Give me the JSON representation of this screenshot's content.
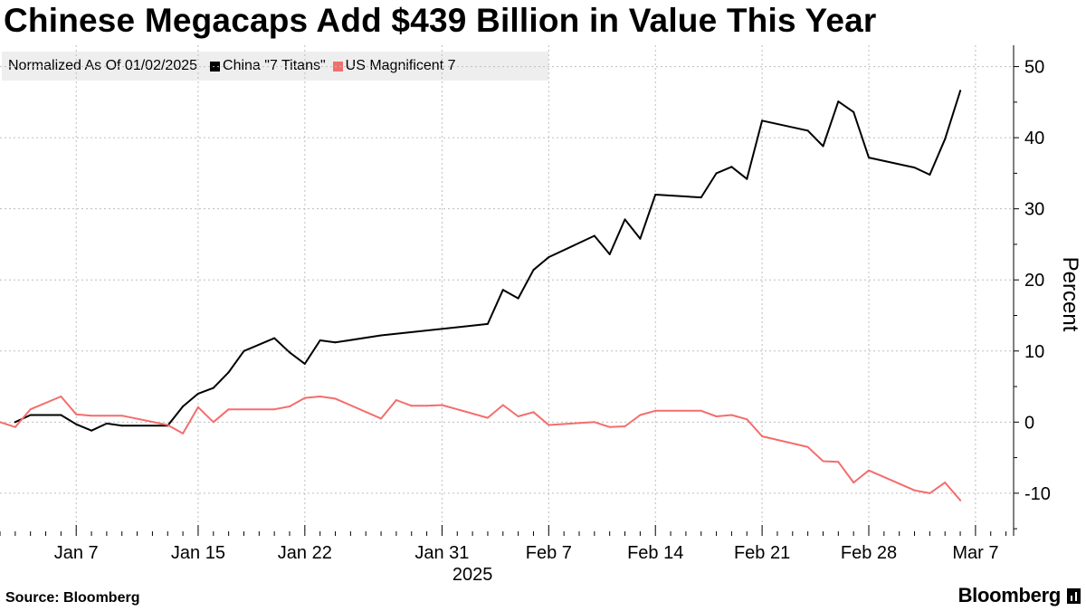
{
  "header": {
    "title": "Chinese Megacaps Add $439 Billion in Value This Year"
  },
  "legend": {
    "note": "Normalized As Of 01/02/2025",
    "items": [
      {
        "label": "China \"7 Titans\"",
        "color": "#000000"
      },
      {
        "label": "US Magnificent 7",
        "color": "#f46d6d"
      }
    ]
  },
  "footer": {
    "source": "Source: Bloomberg",
    "brand": "Bloomberg"
  },
  "chart_data": {
    "type": "line",
    "title": "Chinese Megacaps Add $439 Billion in Value This Year",
    "ylabel": "Percent",
    "xlabel": "2025",
    "ylim": [
      -16,
      53
    ],
    "yticks": [
      50,
      40,
      30,
      20,
      10,
      0,
      -10
    ],
    "xticks": [
      {
        "date": "2025-01-07",
        "label": "Jan 7"
      },
      {
        "date": "2025-01-15",
        "label": "Jan 15"
      },
      {
        "date": "2025-01-22",
        "label": "Jan 22"
      },
      {
        "date": "2025-01-31",
        "label": "Jan 31"
      },
      {
        "date": "2025-02-07",
        "label": "Feb 7"
      },
      {
        "date": "2025-02-14",
        "label": "Feb 14"
      },
      {
        "date": "2025-02-21",
        "label": "Feb 21"
      },
      {
        "date": "2025-02-28",
        "label": "Feb 28"
      },
      {
        "date": "2025-03-07",
        "label": "Mar 7"
      }
    ],
    "year_label": "2025",
    "grid": true,
    "legend_position": "top-left",
    "series": [
      {
        "name": "China \"7 Titans\"",
        "color": "#000000",
        "points": [
          [
            "2025-01-03",
            0.0
          ],
          [
            "2025-01-04",
            1.0
          ],
          [
            "2025-01-06",
            1.0
          ],
          [
            "2025-01-07",
            -0.3
          ],
          [
            "2025-01-08",
            -1.2
          ],
          [
            "2025-01-09",
            -0.2
          ],
          [
            "2025-01-10",
            -0.5
          ],
          [
            "2025-01-13",
            -0.5
          ],
          [
            "2025-01-14",
            2.2
          ],
          [
            "2025-01-15",
            4.0
          ],
          [
            "2025-01-16",
            4.8
          ],
          [
            "2025-01-17",
            7.0
          ],
          [
            "2025-01-18",
            10.0
          ],
          [
            "2025-01-20",
            11.8
          ],
          [
            "2025-01-21",
            9.8
          ],
          [
            "2025-01-22",
            8.2
          ],
          [
            "2025-01-23",
            11.5
          ],
          [
            "2025-01-24",
            11.2
          ],
          [
            "2025-01-27",
            12.2
          ],
          [
            "2025-02-03",
            13.8
          ],
          [
            "2025-02-04",
            18.6
          ],
          [
            "2025-02-05",
            17.4
          ],
          [
            "2025-02-06",
            21.4
          ],
          [
            "2025-02-07",
            23.2
          ],
          [
            "2025-02-10",
            26.2
          ],
          [
            "2025-02-11",
            23.6
          ],
          [
            "2025-02-12",
            28.5
          ],
          [
            "2025-02-13",
            25.8
          ],
          [
            "2025-02-14",
            32.0
          ],
          [
            "2025-02-17",
            31.6
          ],
          [
            "2025-02-18",
            35.0
          ],
          [
            "2025-02-19",
            35.9
          ],
          [
            "2025-02-20",
            34.2
          ],
          [
            "2025-02-21",
            42.4
          ],
          [
            "2025-02-24",
            41.0
          ],
          [
            "2025-02-25",
            38.8
          ],
          [
            "2025-02-26",
            45.1
          ],
          [
            "2025-02-27",
            43.6
          ],
          [
            "2025-02-28",
            37.2
          ],
          [
            "2025-03-03",
            35.8
          ],
          [
            "2025-03-04",
            34.8
          ],
          [
            "2025-03-05",
            39.8
          ],
          [
            "2025-03-06",
            46.6
          ]
        ]
      },
      {
        "name": "US Magnificent 7",
        "color": "#f46d6d",
        "points": [
          [
            "2025-01-02",
            0.0
          ],
          [
            "2025-01-03",
            -0.7
          ],
          [
            "2025-01-04",
            1.8
          ],
          [
            "2025-01-06",
            3.6
          ],
          [
            "2025-01-07",
            1.1
          ],
          [
            "2025-01-08",
            0.9
          ],
          [
            "2025-01-10",
            0.9
          ],
          [
            "2025-01-13",
            -0.4
          ],
          [
            "2025-01-14",
            -1.6
          ],
          [
            "2025-01-15",
            2.1
          ],
          [
            "2025-01-16",
            0.0
          ],
          [
            "2025-01-17",
            1.8
          ],
          [
            "2025-01-20",
            1.8
          ],
          [
            "2025-01-21",
            2.2
          ],
          [
            "2025-01-22",
            3.4
          ],
          [
            "2025-01-23",
            3.6
          ],
          [
            "2025-01-24",
            3.3
          ],
          [
            "2025-01-27",
            0.5
          ],
          [
            "2025-01-28",
            3.1
          ],
          [
            "2025-01-29",
            2.3
          ],
          [
            "2025-01-30",
            2.3
          ],
          [
            "2025-01-31",
            2.4
          ],
          [
            "2025-02-03",
            0.6
          ],
          [
            "2025-02-04",
            2.4
          ],
          [
            "2025-02-05",
            0.8
          ],
          [
            "2025-02-06",
            1.4
          ],
          [
            "2025-02-07",
            -0.4
          ],
          [
            "2025-02-10",
            0.0
          ],
          [
            "2025-02-11",
            -0.7
          ],
          [
            "2025-02-12",
            -0.6
          ],
          [
            "2025-02-13",
            1.0
          ],
          [
            "2025-02-14",
            1.6
          ],
          [
            "2025-02-17",
            1.6
          ],
          [
            "2025-02-18",
            0.8
          ],
          [
            "2025-02-19",
            1.0
          ],
          [
            "2025-02-20",
            0.4
          ],
          [
            "2025-02-21",
            -2.0
          ],
          [
            "2025-02-24",
            -3.5
          ],
          [
            "2025-02-25",
            -5.5
          ],
          [
            "2025-02-26",
            -5.6
          ],
          [
            "2025-02-27",
            -8.5
          ],
          [
            "2025-02-28",
            -6.8
          ],
          [
            "2025-03-03",
            -9.6
          ],
          [
            "2025-03-04",
            -10.0
          ],
          [
            "2025-03-05",
            -8.5
          ],
          [
            "2025-03-06",
            -11.0
          ]
        ]
      }
    ]
  }
}
